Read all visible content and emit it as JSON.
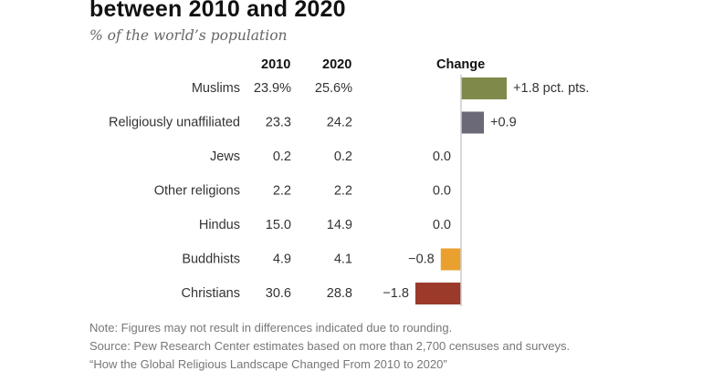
{
  "title": "between 2010 and 2020",
  "subtitle": "% of the world’s population",
  "headers": {
    "y2010": "2010",
    "y2020": "2020",
    "change": "Change"
  },
  "notes": [
    "Note: Figures may not result in differences indicated due to rounding.",
    "Source: Pew Research Center estimates based on more than 2,700 censuses and surveys.",
    "“How the Global Religious Landscape Changed From 2010 to 2020”"
  ],
  "colors": {
    "Muslims": "#7f8a4a",
    "Religiously unaffiliated": "#6b6878",
    "Buddhists": "#e9a02e",
    "Christians": "#9b3a2b",
    "axis": "#cccccc"
  },
  "chart_data": {
    "type": "bar",
    "orientation": "horizontal",
    "title": "between 2010 and 2020",
    "subtitle": "% of the world’s population",
    "xlabel": "Change",
    "ylabel": "",
    "categories": [
      "Muslims",
      "Religiously unaffiliated",
      "Jews",
      "Other religions",
      "Hindus",
      "Buddhists",
      "Christians"
    ],
    "series": [
      {
        "name": "2010",
        "values": [
          23.9,
          23.3,
          0.2,
          2.2,
          15.0,
          4.9,
          30.6
        ],
        "labels": [
          "23.9%",
          "23.3",
          "0.2",
          "2.2",
          "15.0",
          "4.9",
          "30.6"
        ]
      },
      {
        "name": "2020",
        "values": [
          25.6,
          24.2,
          0.2,
          2.2,
          14.9,
          4.1,
          28.8
        ],
        "labels": [
          "25.6%",
          "24.2",
          "0.2",
          "2.2",
          "14.9",
          "4.1",
          "28.8"
        ]
      },
      {
        "name": "Change",
        "values": [
          1.8,
          0.9,
          0.0,
          0.0,
          0.0,
          -0.8,
          -1.8
        ],
        "labels": [
          "+1.8 pct. pts.",
          "+0.9",
          "0.0",
          "0.0",
          "0.0",
          "−0.8",
          "−1.8"
        ]
      }
    ],
    "xlim": [
      -1.8,
      1.8
    ],
    "grid": false,
    "legend": "none"
  }
}
